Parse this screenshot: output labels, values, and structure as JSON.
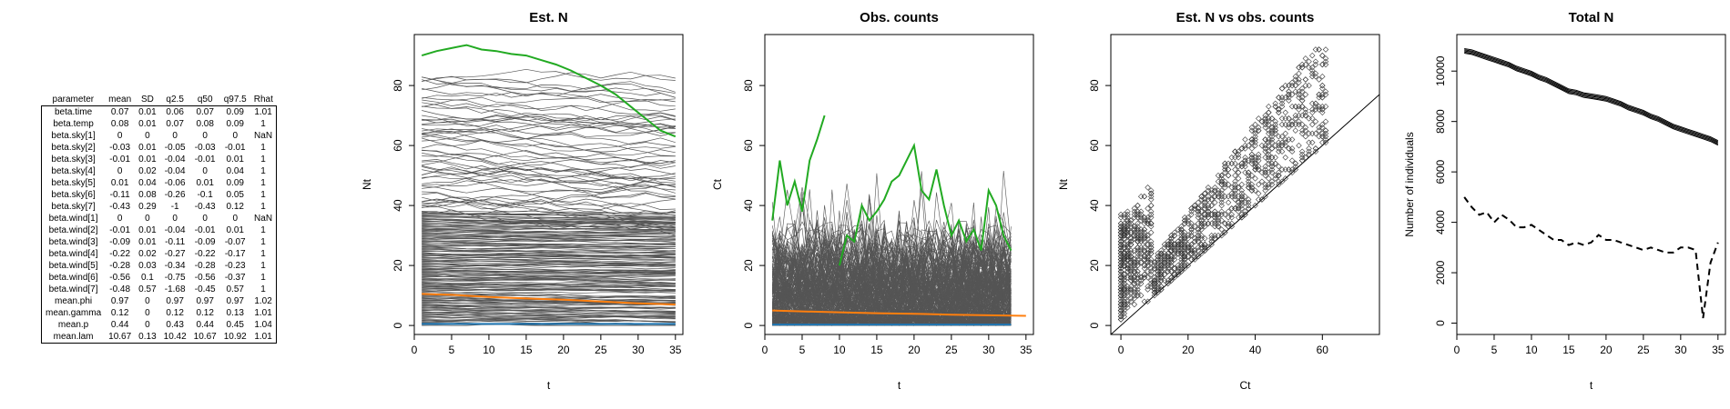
{
  "table": {
    "columns": [
      "parameter",
      "mean",
      "SD",
      "q2.5",
      "q50",
      "q97.5",
      "Rhat"
    ],
    "rows": [
      [
        "beta.time",
        "0.07",
        "0.01",
        "0.06",
        "0.07",
        "0.09",
        "1.01"
      ],
      [
        "beta.temp",
        "0.08",
        "0.01",
        "0.07",
        "0.08",
        "0.09",
        "1"
      ],
      [
        "beta.sky[1]",
        "0",
        "0",
        "0",
        "0",
        "0",
        "NaN"
      ],
      [
        "beta.sky[2]",
        "-0.03",
        "0.01",
        "-0.05",
        "-0.03",
        "-0.01",
        "1"
      ],
      [
        "beta.sky[3]",
        "-0.01",
        "0.01",
        "-0.04",
        "-0.01",
        "0.01",
        "1"
      ],
      [
        "beta.sky[4]",
        "0",
        "0.02",
        "-0.04",
        "0",
        "0.04",
        "1"
      ],
      [
        "beta.sky[5]",
        "0.01",
        "0.04",
        "-0.06",
        "0.01",
        "0.09",
        "1"
      ],
      [
        "beta.sky[6]",
        "-0.11",
        "0.08",
        "-0.26",
        "-0.1",
        "0.05",
        "1"
      ],
      [
        "beta.sky[7]",
        "-0.43",
        "0.29",
        "-1",
        "-0.43",
        "0.12",
        "1"
      ],
      [
        "beta.wind[1]",
        "0",
        "0",
        "0",
        "0",
        "0",
        "NaN"
      ],
      [
        "beta.wind[2]",
        "-0.01",
        "0.01",
        "-0.04",
        "-0.01",
        "0.01",
        "1"
      ],
      [
        "beta.wind[3]",
        "-0.09",
        "0.01",
        "-0.11",
        "-0.09",
        "-0.07",
        "1"
      ],
      [
        "beta.wind[4]",
        "-0.22",
        "0.02",
        "-0.27",
        "-0.22",
        "-0.17",
        "1"
      ],
      [
        "beta.wind[5]",
        "-0.28",
        "0.03",
        "-0.34",
        "-0.28",
        "-0.23",
        "1"
      ],
      [
        "beta.wind[6]",
        "-0.56",
        "0.1",
        "-0.75",
        "-0.56",
        "-0.37",
        "1"
      ],
      [
        "beta.wind[7]",
        "-0.48",
        "0.57",
        "-1.68",
        "-0.45",
        "0.57",
        "1"
      ],
      [
        "mean.phi",
        "0.97",
        "0",
        "0.97",
        "0.97",
        "0.97",
        "1.02"
      ],
      [
        "mean.gamma",
        "0.12",
        "0",
        "0.12",
        "0.12",
        "0.13",
        "1.01"
      ],
      [
        "mean.p",
        "0.44",
        "0",
        "0.43",
        "0.44",
        "0.45",
        "1.04"
      ],
      [
        "mean.lam",
        "10.67",
        "0.13",
        "10.42",
        "10.67",
        "10.92",
        "1.01"
      ]
    ]
  },
  "chart_data": [
    {
      "type": "line",
      "title": "Est. N",
      "xlabel": "t",
      "ylabel": "Nt",
      "xlim": [
        0,
        36
      ],
      "ylim": [
        -3,
        97
      ],
      "xticks": [
        0,
        5,
        10,
        15,
        20,
        25,
        30,
        35
      ],
      "yticks": [
        0,
        20,
        40,
        60,
        80
      ],
      "background_lines": "many grey per-site trajectories, t = 1..35",
      "series": [
        {
          "color": "#22aa22",
          "x": [
            1,
            3,
            5,
            7,
            9,
            11,
            13,
            15,
            17,
            19,
            21,
            23,
            25,
            27,
            29,
            31,
            33,
            35
          ],
          "values": [
            90,
            91.5,
            92.5,
            93.5,
            92,
            91.5,
            90.5,
            90,
            88.5,
            87,
            85,
            82.5,
            80,
            77,
            73,
            69,
            65,
            63
          ]
        },
        {
          "color": "#ff7f0e",
          "x": [
            1,
            5,
            10,
            15,
            20,
            25,
            30,
            35
          ],
          "values": [
            10.5,
            10.2,
            9.5,
            9.0,
            8.6,
            8.0,
            7.4,
            7.0
          ]
        },
        {
          "color": "#1f77b4",
          "x": [
            1,
            35
          ],
          "values": [
            0.5,
            0.5
          ]
        }
      ]
    },
    {
      "type": "line",
      "title": "Obs. counts",
      "xlabel": "t",
      "ylabel": "Ct",
      "xlim": [
        0,
        36
      ],
      "ylim": [
        -3,
        97
      ],
      "xticks": [
        0,
        5,
        10,
        15,
        20,
        25,
        30,
        35
      ],
      "yticks": [
        0,
        20,
        40,
        60,
        80
      ],
      "background_lines": "many grey per-site observed counts, t = 1..33",
      "series": [
        {
          "color": "#22aa22",
          "x": [
            1,
            2,
            3,
            4,
            5,
            6,
            7,
            8
          ],
          "values": [
            35,
            55,
            40,
            48,
            38,
            55,
            62,
            70
          ]
        },
        {
          "color": "#22aa22",
          "x": [
            10,
            11,
            12,
            13,
            14,
            15,
            16,
            17,
            18,
            19,
            20,
            21,
            22,
            23,
            24,
            25,
            26,
            27,
            28,
            29,
            30,
            31,
            32,
            33
          ],
          "values": [
            20,
            30,
            28,
            40,
            35,
            38,
            42,
            48,
            50,
            55,
            60,
            45,
            42,
            52,
            40,
            30,
            35,
            28,
            32,
            25,
            45,
            40,
            30,
            25
          ]
        },
        {
          "color": "#ff7f0e",
          "x": [
            1,
            5,
            10,
            15,
            20,
            25,
            30,
            35
          ],
          "values": [
            5,
            4.7,
            4.4,
            4.1,
            3.9,
            3.6,
            3.4,
            3.2
          ]
        },
        {
          "color": "#1f77b4",
          "x": [
            1,
            33
          ],
          "values": [
            0.3,
            0.3
          ]
        }
      ]
    },
    {
      "type": "scatter",
      "title": "Est. N vs obs. counts",
      "xlabel": "Ct",
      "ylabel": "Nt",
      "xlim": [
        -3,
        77
      ],
      "ylim": [
        -3,
        97
      ],
      "xticks": [
        0,
        20,
        40,
        60
      ],
      "yticks": [
        0,
        20,
        40,
        60,
        80
      ],
      "reference_line": "y = x",
      "points": "dense cloud of open diamonds above the 1:1 line"
    },
    {
      "type": "line",
      "title": "Total N",
      "xlabel": "t",
      "ylabel": "Number of individuals",
      "xlim": [
        0,
        36
      ],
      "ylim": [
        -450,
        11450
      ],
      "xticks": [
        0,
        5,
        10,
        15,
        20,
        25,
        30,
        35
      ],
      "yticks": [
        0,
        2000,
        4000,
        6000,
        8000,
        10000
      ],
      "series": [
        {
          "style": "solid",
          "x": [
            1,
            2,
            3,
            4,
            5,
            6,
            7,
            8,
            9,
            10,
            11,
            12,
            13,
            14,
            15,
            16,
            17,
            18,
            19,
            20,
            21,
            22,
            23,
            24,
            25,
            26,
            27,
            28,
            29,
            30,
            31,
            32,
            33,
            34,
            35
          ],
          "values": [
            10800,
            10750,
            10650,
            10550,
            10450,
            10350,
            10250,
            10100,
            10000,
            9900,
            9750,
            9650,
            9500,
            9350,
            9200,
            9150,
            9050,
            9000,
            8950,
            8900,
            8800,
            8700,
            8550,
            8450,
            8350,
            8200,
            8100,
            7950,
            7800,
            7700,
            7600,
            7500,
            7400,
            7300,
            7150
          ]
        },
        {
          "style": "dashed",
          "x": [
            1,
            2,
            3,
            4,
            5,
            6,
            7,
            8,
            9,
            10,
            11,
            12,
            13,
            14,
            15,
            16,
            17,
            18,
            19,
            20,
            21,
            22,
            23,
            24,
            25,
            26,
            27,
            28,
            29,
            30,
            31,
            32,
            33,
            34,
            35
          ],
          "values": [
            5000,
            4600,
            4300,
            4400,
            4000,
            4300,
            4100,
            3800,
            3800,
            3900,
            3700,
            3500,
            3300,
            3300,
            3100,
            3200,
            3100,
            3200,
            3500,
            3300,
            3300,
            3200,
            3100,
            3000,
            2900,
            3000,
            2900,
            2800,
            2800,
            3000,
            3000,
            2900,
            200,
            2400,
            3200
          ]
        }
      ]
    }
  ]
}
